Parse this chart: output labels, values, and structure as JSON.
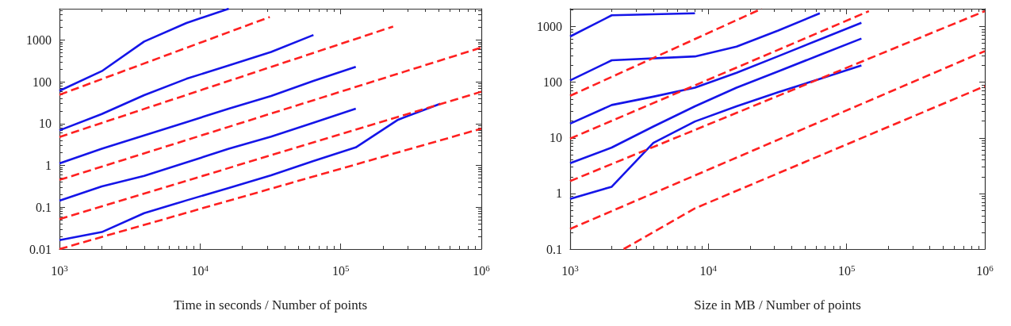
{
  "chart_data": [
    {
      "type": "line",
      "xlabel": "Time in seconds / Number of points",
      "log": "xy",
      "grid": false,
      "marker": "none",
      "xlim": [
        1000,
        1000000
      ],
      "ylim": [
        0.01,
        5600
      ],
      "xticks": [
        {
          "value": 1000,
          "label": "10$^{3}$"
        },
        {
          "value": 10000,
          "label": "10$^{4}$"
        },
        {
          "value": 100000,
          "label": "10$^{5}$"
        },
        {
          "value": 1000000,
          "label": "10$^{6}$"
        }
      ],
      "yticks": [
        0.01,
        0.1,
        1,
        10,
        100,
        1000
      ],
      "series": [
        {
          "color": "#1515e8",
          "line_style": "solid",
          "x": [
            1000,
            2000,
            4000,
            8000,
            16000
          ],
          "values": [
            61,
            180,
            920,
            2550,
            5600
          ]
        },
        {
          "color": "#1515e8",
          "line_style": "solid",
          "x": [
            1000,
            2000,
            4000,
            8000,
            16000,
            32000,
            64000
          ],
          "values": [
            6.9,
            17,
            48,
            118,
            247,
            518,
            1320
          ]
        },
        {
          "color": "#1515e8",
          "line_style": "solid",
          "x": [
            1000,
            2000,
            4000,
            8000,
            16000,
            32000,
            64000,
            128000
          ],
          "values": [
            1.12,
            2.5,
            5.2,
            10.9,
            22.7,
            46,
            105,
            228
          ]
        },
        {
          "color": "#1515e8",
          "line_style": "solid",
          "x": [
            1000,
            2000,
            4000,
            8000,
            16000,
            32000,
            64000,
            128000
          ],
          "values": [
            0.144,
            0.316,
            0.56,
            1.18,
            2.5,
            4.9,
            10.5,
            22.7
          ]
        },
        {
          "color": "#1515e8",
          "line_style": "solid",
          "x": [
            1000,
            2000,
            4000,
            8000,
            16000,
            32000,
            64000,
            128000,
            256000,
            512000
          ],
          "values": [
            0.0164,
            0.0255,
            0.072,
            0.146,
            0.29,
            0.58,
            1.28,
            2.7,
            12.4,
            30
          ]
        },
        {
          "color": "#ff2020",
          "line_style": "dashed",
          "x": [
            1000,
            31300
          ],
          "values": [
            49,
            3550
          ]
        },
        {
          "color": "#ff2020",
          "line_style": "dashed",
          "x": [
            1000,
            236000
          ],
          "values": [
            4.8,
            2100
          ]
        },
        {
          "color": "#ff2020",
          "line_style": "dashed",
          "x": [
            1000,
            1000000
          ],
          "values": [
            0.45,
            660
          ]
        },
        {
          "color": "#ff2020",
          "line_style": "dashed",
          "x": [
            1000,
            1000000
          ],
          "values": [
            0.052,
            58
          ]
        },
        {
          "color": "#ff2020",
          "line_style": "dashed",
          "x": [
            1000,
            1000000
          ],
          "values": [
            0.01,
            7.6
          ]
        }
      ]
    },
    {
      "type": "line",
      "xlabel": "Size in MB / Number of points",
      "log": "xy",
      "grid": false,
      "marker": "none",
      "xlim": [
        1000,
        1000000
      ],
      "ylim": [
        0.1,
        2100
      ],
      "xticks": [
        {
          "value": 1000,
          "label": "10$^{3}$"
        },
        {
          "value": 10000,
          "label": "10$^{4}$"
        },
        {
          "value": 100000,
          "label": "10$^{5}$"
        },
        {
          "value": 1000000,
          "label": "10$^{6}$"
        }
      ],
      "yticks": [
        0.1,
        1,
        10,
        100,
        1000
      ],
      "series": [
        {
          "color": "#1515e8",
          "line_style": "solid",
          "x": [
            1000,
            2000,
            8000
          ],
          "values": [
            665,
            1600,
            1740
          ]
        },
        {
          "color": "#1515e8",
          "line_style": "solid",
          "x": [
            1000,
            2000,
            8000,
            16000,
            32000,
            64000
          ],
          "values": [
            108,
            248,
            291,
            437,
            850,
            1740
          ]
        },
        {
          "color": "#1515e8",
          "line_style": "solid",
          "x": [
            1000,
            2000,
            4000,
            8000,
            16000,
            32000,
            64000,
            128000
          ],
          "values": [
            18,
            39,
            55,
            80,
            148,
            294,
            588,
            1170
          ]
        },
        {
          "color": "#1515e8",
          "line_style": "solid",
          "x": [
            1000,
            2000,
            4000,
            8000,
            16000,
            32000,
            64000,
            128000
          ],
          "values": [
            3.5,
            6.7,
            16,
            37,
            80,
            157,
            310,
            610
          ]
        },
        {
          "color": "#1515e8",
          "line_style": "solid",
          "x": [
            1000,
            2000,
            4000,
            8000,
            16000,
            32000,
            64000,
            128000
          ],
          "values": [
            0.8,
            1.32,
            8.1,
            19.7,
            37,
            66,
            115,
            201
          ]
        },
        {
          "color": "#ff2020",
          "line_style": "dashed",
          "x": [
            1000,
            24300
          ],
          "values": [
            57,
            2100
          ]
        },
        {
          "color": "#ff2020",
          "line_style": "dashed",
          "x": [
            1000,
            145000
          ],
          "values": [
            9.7,
            1900
          ]
        },
        {
          "color": "#ff2020",
          "line_style": "dashed",
          "x": [
            1000,
            1000000
          ],
          "values": [
            1.67,
            1900
          ]
        },
        {
          "color": "#ff2020",
          "line_style": "dashed",
          "x": [
            1000,
            1000000
          ],
          "values": [
            0.23,
            363
          ]
        },
        {
          "color": "#ff2020",
          "line_style": "dashed",
          "x": [
            2440,
            8000,
            1000000
          ],
          "values": [
            0.1,
            0.54,
            85
          ]
        }
      ]
    }
  ]
}
